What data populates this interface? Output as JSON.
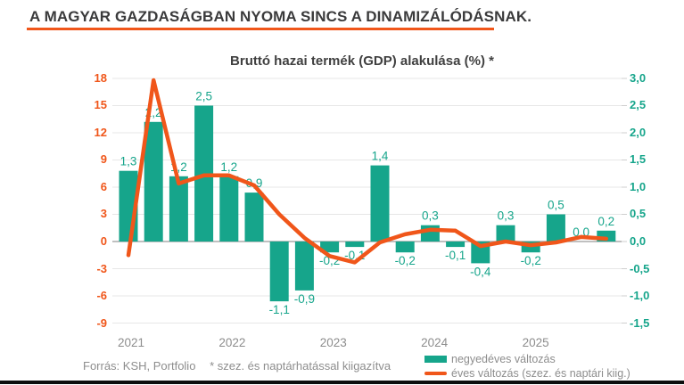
{
  "headline": "A MAGYAR GAZDASÁGBAN NYOMA SINCS A DINAMIZÁLÓDÁSNAK.",
  "chart": {
    "title": "Bruttó hazai termék (GDP) alakulása (%) *"
  },
  "legend": {
    "bars_label": "negyedéves változás",
    "line_label": "éves változás (szez. és naptári kiig.)"
  },
  "footer": {
    "source": "Forrás: KSH, Portfolio",
    "note": "* szez. és naptárhatással kiigazítva"
  },
  "colors": {
    "bar_teal": "#16a58b",
    "line_orange": "#f0561a",
    "left_axis_text": "#f0561a",
    "right_axis_text": "#16a58b",
    "gridline": "#e7e7e7",
    "zero_line": "#ababab",
    "tick_mark": "#cfcfcf",
    "muted_text": "#8d8d8d",
    "headline_text": "#3a3a3b",
    "headline_underline": "#f0561a"
  },
  "chart_data": {
    "type": "bar",
    "title": "Bruttó hazai termék (GDP) alakulása (%) *",
    "categories": [
      "2021 Q1",
      "2021 Q2",
      "2021 Q3",
      "2021 Q4",
      "2022 Q1",
      "2022 Q2",
      "2022 Q3",
      "2022 Q4",
      "2023 Q1",
      "2023 Q2",
      "2023 Q3",
      "2023 Q4",
      "2024 Q1",
      "2024 Q2",
      "2024 Q3",
      "2024 Q4",
      "2025 Q1",
      "2025 Q2",
      "2025 Q3",
      "2025 Q4"
    ],
    "x_year_labels": [
      "2021",
      "2022",
      "2023",
      "2024",
      "2025"
    ],
    "series": [
      {
        "name": "negyedéves változás",
        "type": "bar",
        "axis": "right",
        "values": [
          1.3,
          2.2,
          1.2,
          2.5,
          1.2,
          0.9,
          -1.1,
          -0.9,
          -0.2,
          -0.1,
          1.4,
          -0.2,
          0.3,
          -0.1,
          -0.4,
          0.3,
          -0.2,
          0.5,
          0.0,
          0.2
        ],
        "labels": [
          "1,3",
          "2,2",
          "1,2",
          "2,5",
          "1,2",
          "0,9",
          "-1,1",
          "-0,9",
          "-0,2",
          "-0,1",
          "1,4",
          "-0,2",
          "0,3",
          "-0,1",
          "-0,4",
          "0,3",
          "-0,2",
          "0,5",
          "0,0",
          "0,2"
        ]
      },
      {
        "name": "éves változás (szez. és naptári kiig.)",
        "type": "line",
        "axis": "left",
        "values": [
          -1.5,
          17.8,
          6.4,
          7.3,
          7.3,
          6.2,
          3.0,
          0.4,
          -1.6,
          -2.3,
          -0.1,
          0.8,
          1.3,
          1.2,
          -0.5,
          0.0,
          -0.4,
          -0.1,
          0.5,
          0.3
        ]
      }
    ],
    "left_axis": {
      "ticks": [
        18,
        15,
        12,
        9,
        6,
        3,
        0,
        -3,
        -6,
        -9
      ],
      "labels": [
        "18",
        "15",
        "12",
        "9",
        "6",
        "3",
        "0",
        "-3",
        "-6",
        "-9"
      ],
      "range": [
        -9,
        18
      ]
    },
    "right_axis": {
      "ticks": [
        3.0,
        2.5,
        2.0,
        1.5,
        1.0,
        0.5,
        0.0,
        -0.5,
        -1.0,
        -1.5
      ],
      "labels": [
        "3,0",
        "2,5",
        "2,0",
        "1,5",
        "1,0",
        "0,5",
        "0,0",
        "-0,5",
        "-1,0",
        "-1,5"
      ],
      "range": [
        -1.5,
        3.0
      ]
    },
    "grid": "horizontal",
    "legend_position": "bottom-right"
  }
}
